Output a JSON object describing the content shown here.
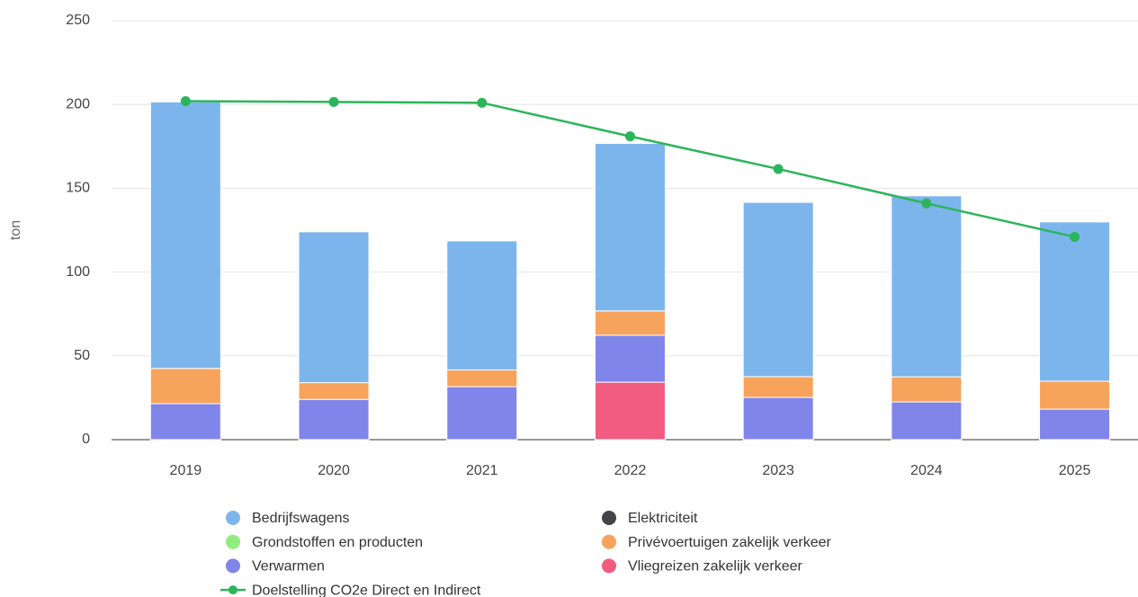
{
  "chart_data": {
    "type": "bar",
    "y_label": "ton",
    "categories": [
      "2019",
      "2020",
      "2021",
      "2022",
      "2023",
      "2024",
      "2025"
    ],
    "series": [
      {
        "name": "Bedrijfswagens",
        "color": "#7cb5ec",
        "values": [
          159,
          90,
          77,
          100,
          104,
          108,
          95
        ]
      },
      {
        "name": "Elektriciteit",
        "color": "#434348",
        "values": [
          0,
          0,
          0,
          0,
          0,
          0,
          0
        ]
      },
      {
        "name": "Grondstoffen en producten",
        "color": "#90ed7d",
        "values": [
          0,
          0,
          0,
          0,
          0,
          0,
          0
        ]
      },
      {
        "name": "Privévoertuigen zakelijk verkeer",
        "color": "#f7a35c",
        "values": [
          21,
          10,
          10,
          14.5,
          12.4,
          15,
          16.7
        ]
      },
      {
        "name": "Verwarmen",
        "color": "#8085e9",
        "values": [
          21.5,
          24,
          31.6,
          28,
          25.2,
          22.5,
          18.2
        ]
      },
      {
        "name": "Vliegreizen zakelijk verkeer",
        "color": "#f15c80",
        "values": [
          0,
          0,
          0,
          34.3,
          0,
          0,
          0
        ]
      },
      {
        "name": "Doelstelling CO2e Direct en Indirect",
        "color": "#2bb55a",
        "type": "line",
        "values": [
          202,
          201.5,
          201,
          181,
          161.5,
          141,
          121
        ]
      }
    ],
    "ylim": [
      0,
      250
    ],
    "yticks": [
      0,
      50,
      100,
      150,
      200,
      250
    ],
    "grid": true,
    "stacked": true
  }
}
